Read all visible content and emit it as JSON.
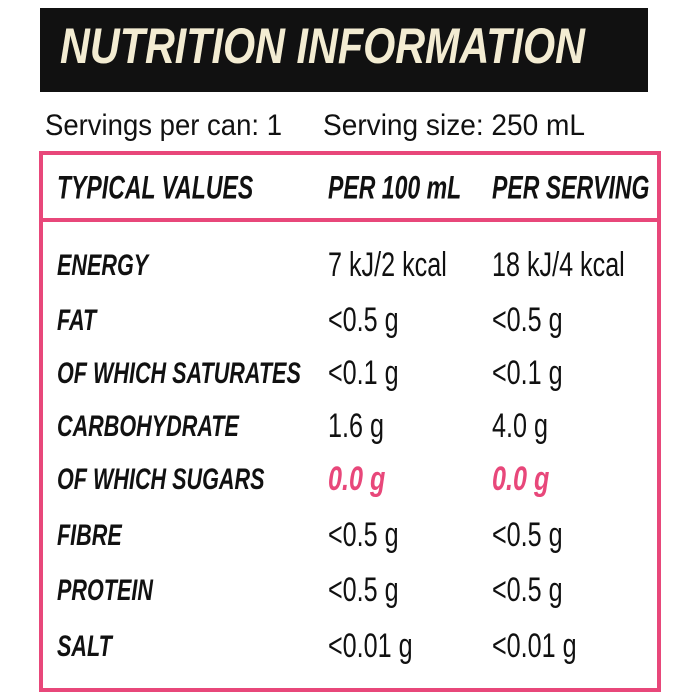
{
  "header": {
    "title": "NUTRITION INFORMATION"
  },
  "servings": {
    "per_can": "Servings per can: 1",
    "size": "Serving size: 250 mL"
  },
  "table": {
    "columns": [
      "TYPICAL VALUES",
      "PER 100 mL",
      "PER SERVING"
    ],
    "rows": [
      [
        "ENERGY",
        "7 kJ/2 kcal",
        "18 kJ/4 kcal"
      ],
      [
        "FAT",
        "<0.5 g",
        "<0.5 g"
      ],
      [
        "OF WHICH SATURATES",
        "<0.1 g",
        "<0.1 g"
      ],
      [
        "CARBOHYDRATE",
        "1.6 g",
        "4.0 g"
      ],
      [
        "OF WHICH SUGARS",
        "0.0 g",
        "0.0 g"
      ],
      [
        "FIBRE",
        "<0.5 g",
        "<0.5 g"
      ],
      [
        "PROTEIN",
        "<0.5 g",
        "<0.5 g"
      ],
      [
        "SALT",
        "<0.01 g",
        "<0.01 g"
      ]
    ]
  }
}
